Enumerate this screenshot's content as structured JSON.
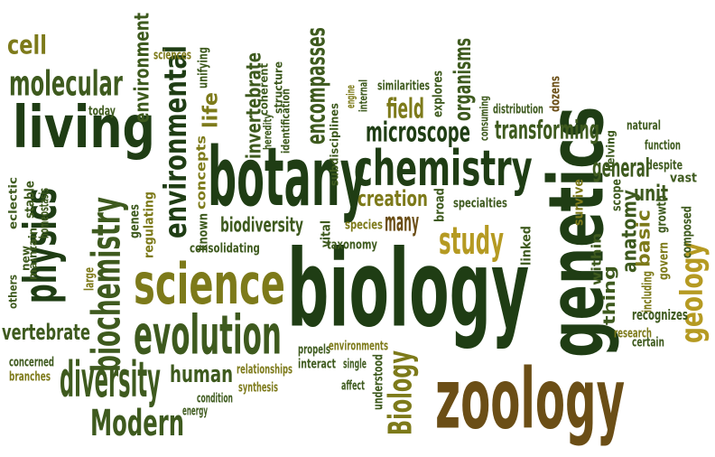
{
  "colors": {
    "dark_green": "#1f3d14",
    "green": "#3e5a1e",
    "olive": "#7d7a1a",
    "gold": "#b59a22",
    "brown": "#6b4e16"
  },
  "words": [
    {
      "text": "biology",
      "color": "dark_green"
    },
    {
      "text": "genetics",
      "color": "dark_green"
    },
    {
      "text": "zoology",
      "color": "brown"
    },
    {
      "text": "botany",
      "color": "dark_green"
    },
    {
      "text": "science",
      "color": "olive"
    },
    {
      "text": "living",
      "color": "dark_green"
    },
    {
      "text": "chemistry",
      "color": "dark_green"
    },
    {
      "text": "evolution",
      "color": "green"
    },
    {
      "text": "physics",
      "color": "dark_green"
    },
    {
      "text": "biochemistry",
      "color": "green"
    },
    {
      "text": "diversity",
      "color": "green"
    },
    {
      "text": "Modern",
      "color": "green"
    },
    {
      "text": "Biology",
      "color": "olive"
    },
    {
      "text": "molecular",
      "color": "green"
    },
    {
      "text": "cell",
      "color": "olive"
    },
    {
      "text": "environmental",
      "color": "dark_green"
    },
    {
      "text": "study",
      "color": "gold"
    },
    {
      "text": "geology",
      "color": "gold"
    },
    {
      "text": "transforming",
      "color": "green"
    },
    {
      "text": "microscope",
      "color": "dark_green"
    },
    {
      "text": "encompasses",
      "color": "green"
    },
    {
      "text": "invertebrate",
      "color": "green"
    },
    {
      "text": "organisms",
      "color": "green"
    },
    {
      "text": "biodiversity",
      "color": "green"
    },
    {
      "text": "creation",
      "color": "olive"
    },
    {
      "text": "human",
      "color": "green"
    },
    {
      "text": "vertebrate",
      "color": "green"
    },
    {
      "text": "general",
      "color": "green"
    },
    {
      "text": "anatomy",
      "color": "green"
    },
    {
      "text": "field",
      "color": "olive"
    },
    {
      "text": "many",
      "color": "brown"
    },
    {
      "text": "unit",
      "color": "green"
    },
    {
      "text": "basic",
      "color": "olive"
    },
    {
      "text": "thing",
      "color": "green"
    },
    {
      "text": "life",
      "color": "olive"
    },
    {
      "text": "environment",
      "color": "green"
    },
    {
      "text": "concepts",
      "color": "olive"
    },
    {
      "text": "sciences",
      "color": "olive"
    },
    {
      "text": "unifying",
      "color": "green"
    },
    {
      "text": "today",
      "color": "green"
    },
    {
      "text": "coherent",
      "color": "green"
    },
    {
      "text": "heredity",
      "color": "green"
    },
    {
      "text": "structure",
      "color": "green"
    },
    {
      "text": "identification",
      "color": "green"
    },
    {
      "text": "subdisciplines",
      "color": "green"
    },
    {
      "text": "engine",
      "color": "olive"
    },
    {
      "text": "internal",
      "color": "green"
    },
    {
      "text": "similarities",
      "color": "green"
    },
    {
      "text": "explores",
      "color": "green"
    },
    {
      "text": "consuming",
      "color": "green"
    },
    {
      "text": "distribution",
      "color": "green"
    },
    {
      "text": "dozens",
      "color": "brown"
    },
    {
      "text": "natural",
      "color": "green"
    },
    {
      "text": "delving",
      "color": "green"
    },
    {
      "text": "function",
      "color": "green"
    },
    {
      "text": "despite",
      "color": "green"
    },
    {
      "text": "vast",
      "color": "green"
    },
    {
      "text": "scope",
      "color": "green"
    },
    {
      "text": "survive",
      "color": "olive"
    },
    {
      "text": "growth",
      "color": "green"
    },
    {
      "text": "composed",
      "color": "green"
    },
    {
      "text": "govern",
      "color": "olive"
    },
    {
      "text": "including",
      "color": "olive"
    },
    {
      "text": "within",
      "color": "green"
    },
    {
      "text": "recognizes",
      "color": "green"
    },
    {
      "text": "research",
      "color": "olive"
    },
    {
      "text": "certain",
      "color": "green"
    },
    {
      "text": "linked",
      "color": "green"
    },
    {
      "text": "broad",
      "color": "green"
    },
    {
      "text": "specialties",
      "color": "green"
    },
    {
      "text": "species",
      "color": "olive"
    },
    {
      "text": "vital",
      "color": "green"
    },
    {
      "text": "taxonomy",
      "color": "green"
    },
    {
      "text": "known",
      "color": "green"
    },
    {
      "text": "consolidating",
      "color": "green"
    },
    {
      "text": "regulating",
      "color": "olive"
    },
    {
      "text": "genes",
      "color": "green"
    },
    {
      "text": "eclectic",
      "color": "green"
    },
    {
      "text": "stable",
      "color": "green"
    },
    {
      "text": "homeostasis",
      "color": "green"
    },
    {
      "text": "maintain",
      "color": "green"
    },
    {
      "text": "new",
      "color": "green"
    },
    {
      "text": "large",
      "color": "olive"
    },
    {
      "text": "others",
      "color": "green"
    },
    {
      "text": "concerned",
      "color": "green"
    },
    {
      "text": "branches",
      "color": "olive"
    },
    {
      "text": "propels",
      "color": "green"
    },
    {
      "text": "environments",
      "color": "olive"
    },
    {
      "text": "interact",
      "color": "green"
    },
    {
      "text": "single",
      "color": "green"
    },
    {
      "text": "relationships",
      "color": "olive"
    },
    {
      "text": "synthesis",
      "color": "olive"
    },
    {
      "text": "affect",
      "color": "green"
    },
    {
      "text": "understood",
      "color": "green"
    },
    {
      "text": "condition",
      "color": "green"
    },
    {
      "text": "energy",
      "color": "green"
    }
  ]
}
